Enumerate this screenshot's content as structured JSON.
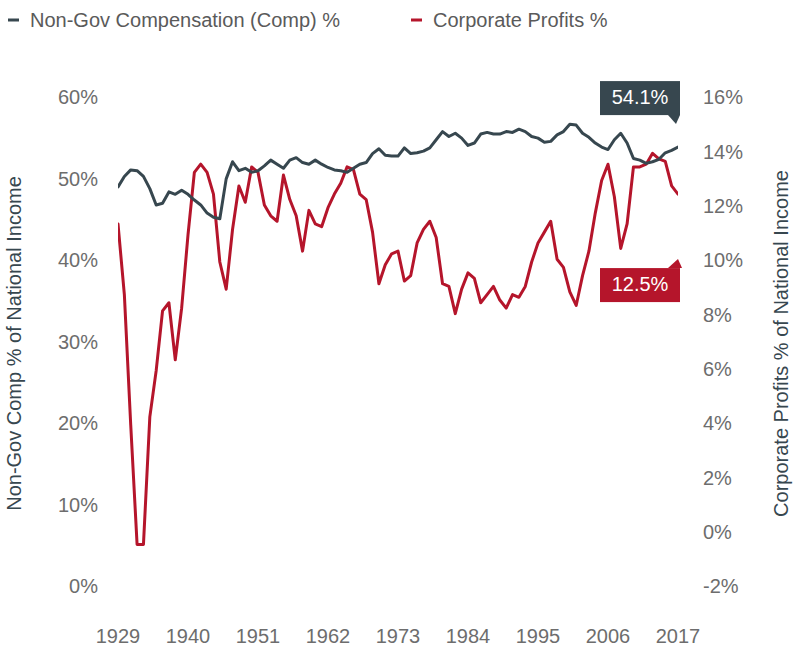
{
  "chart_data": {
    "type": "line",
    "x": [
      1929,
      1930,
      1931,
      1932,
      1933,
      1934,
      1935,
      1936,
      1937,
      1938,
      1939,
      1940,
      1941,
      1942,
      1943,
      1944,
      1945,
      1946,
      1947,
      1948,
      1949,
      1950,
      1951,
      1952,
      1953,
      1954,
      1955,
      1956,
      1957,
      1958,
      1959,
      1960,
      1961,
      1962,
      1963,
      1964,
      1965,
      1966,
      1967,
      1968,
      1969,
      1970,
      1971,
      1972,
      1973,
      1974,
      1975,
      1976,
      1977,
      1978,
      1979,
      1980,
      1981,
      1982,
      1983,
      1984,
      1985,
      1986,
      1987,
      1988,
      1989,
      1990,
      1991,
      1992,
      1993,
      1994,
      1995,
      1996,
      1997,
      1998,
      1999,
      2000,
      2001,
      2002,
      2003,
      2004,
      2005,
      2006,
      2007,
      2008,
      2009,
      2010,
      2011,
      2012,
      2013,
      2014,
      2015,
      2016,
      2017
    ],
    "series": [
      {
        "name": "Non-Gov Compensation (Comp) %",
        "color": "#37474f",
        "values": [
          49.2,
          50.5,
          51.3,
          51.2,
          50.5,
          49.0,
          47.0,
          47.2,
          48.6,
          48.3,
          48.8,
          48.3,
          47.6,
          47.0,
          46.0,
          45.5,
          45.3,
          50.2,
          52.3,
          51.2,
          51.5,
          51.0,
          51.2,
          51.8,
          52.5,
          52.0,
          51.5,
          52.5,
          52.8,
          52.2,
          52.0,
          52.5,
          52.0,
          51.6,
          51.3,
          51.2,
          51.0,
          51.5,
          52.0,
          52.2,
          53.3,
          53.9,
          53.1,
          53.0,
          53.0,
          54.0,
          53.3,
          53.4,
          53.6,
          54.0,
          55.0,
          56.0,
          55.4,
          55.8,
          55.2,
          54.3,
          54.6,
          55.7,
          55.9,
          55.7,
          55.7,
          56.0,
          55.9,
          56.3,
          56.0,
          55.4,
          55.2,
          54.7,
          54.8,
          55.6,
          56.0,
          56.9,
          56.8,
          55.8,
          55.3,
          54.6,
          54.1,
          53.8,
          55.0,
          55.8,
          54.6,
          52.7,
          52.5,
          52.1,
          52.3,
          52.6,
          53.4,
          53.7,
          54.1
        ]
      },
      {
        "name": "Corporate Profits %",
        "color": "#b5152b",
        "axis": "y2",
        "values": [
          11.4,
          8.8,
          4.0,
          -0.4,
          -0.4,
          4.3,
          6.0,
          8.2,
          8.5,
          6.4,
          8.3,
          11.0,
          13.3,
          13.6,
          13.3,
          12.5,
          10.0,
          9.0,
          11.2,
          12.8,
          12.2,
          13.5,
          13.3,
          12.1,
          11.7,
          11.5,
          13.2,
          12.3,
          11.7,
          10.4,
          11.9,
          11.4,
          11.3,
          12.0,
          12.5,
          12.9,
          13.5,
          13.4,
          12.5,
          12.3,
          11.1,
          9.2,
          9.9,
          10.3,
          10.4,
          9.3,
          9.5,
          10.7,
          11.2,
          11.5,
          10.9,
          9.2,
          9.1,
          8.1,
          9.0,
          9.6,
          9.4,
          8.5,
          8.8,
          9.1,
          8.6,
          8.3,
          8.8,
          8.7,
          9.1,
          10.0,
          10.7,
          11.1,
          11.5,
          10.1,
          9.8,
          8.9,
          8.4,
          9.5,
          10.4,
          11.8,
          13.0,
          13.6,
          12.4,
          10.5,
          11.4,
          13.5,
          13.5,
          13.6,
          14.0,
          13.8,
          13.7,
          12.8,
          12.5
        ]
      }
    ],
    "y_label": "Non-Gov Comp % of National Income",
    "y2_label": "Corporate Profits % of National Income",
    "xlim": [
      1929,
      2017
    ],
    "xticks": [
      1929,
      1940,
      1951,
      1962,
      1973,
      1984,
      1995,
      2006,
      2017
    ],
    "ylim": [
      0,
      60
    ],
    "yticks": [
      {
        "value": 0,
        "label": "0%"
      },
      {
        "value": 10,
        "label": "10%"
      },
      {
        "value": 20,
        "label": "20%"
      },
      {
        "value": 30,
        "label": "30%"
      },
      {
        "value": 40,
        "label": "40%"
      },
      {
        "value": 50,
        "label": "50%"
      },
      {
        "value": 60,
        "label": "60%"
      }
    ],
    "y2lim": [
      -2,
      16
    ],
    "y2ticks": [
      {
        "value": -2,
        "label": "-2%"
      },
      {
        "value": 0,
        "label": "0%"
      },
      {
        "value": 2,
        "label": "2%"
      },
      {
        "value": 4,
        "label": "4%"
      },
      {
        "value": 6,
        "label": "6%"
      },
      {
        "value": 8,
        "label": "8%"
      },
      {
        "value": 10,
        "label": "10%"
      },
      {
        "value": 12,
        "label": "12%"
      },
      {
        "value": 14,
        "label": "14%"
      },
      {
        "value": 16,
        "label": "16%"
      }
    ],
    "grid": false,
    "legend": "top-left",
    "annotations": [
      {
        "text": "54.1%",
        "x": 2017,
        "y": 54.1,
        "color": "#37474f"
      },
      {
        "text": "12.5%",
        "x": 2017,
        "y": 12.5,
        "color": "#b5152b",
        "axis": "y2"
      }
    ]
  }
}
